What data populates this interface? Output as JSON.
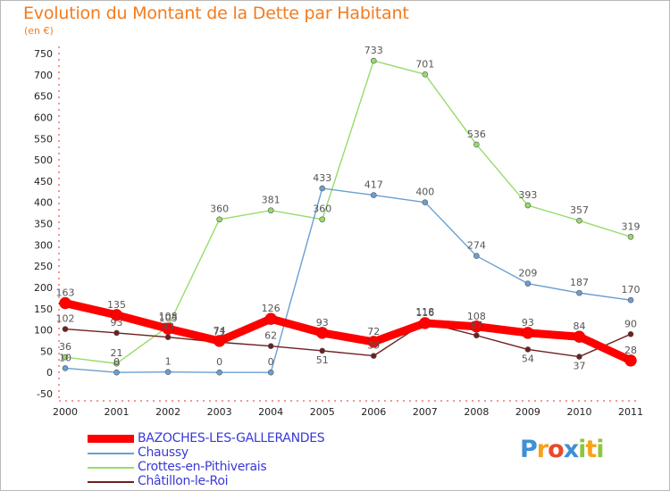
{
  "title": "Evolution du Montant de la Dette par Habitant",
  "unit_label": "(en €)",
  "chart_data": {
    "type": "line",
    "x": [
      "2000",
      "2001",
      "2002",
      "2003",
      "2004",
      "2005",
      "2006",
      "2007",
      "2008",
      "2009",
      "2010",
      "2011"
    ],
    "ylim": [
      -50,
      750
    ],
    "yticks": [
      -50,
      0,
      50,
      100,
      150,
      200,
      250,
      300,
      350,
      400,
      450,
      500,
      550,
      600,
      650,
      700,
      750
    ],
    "grid": false,
    "legend_position": "bottom-left",
    "series": [
      {
        "name": "BAZOCHES-LES-GALLERANDES",
        "color": "#ff0000",
        "values": [
          163,
          135,
          103,
          74,
          126,
          93,
          72,
          116,
          108,
          93,
          84,
          28
        ]
      },
      {
        "name": "Chaussy",
        "color": "#6a9fd1",
        "values": [
          10,
          0,
          1,
          0,
          0,
          433,
          417,
          400,
          274,
          209,
          187,
          170
        ]
      },
      {
        "name": "Crottes-en-Pithiverais",
        "color": "#96dc6a",
        "values": [
          36,
          21,
          108,
          360,
          381,
          360,
          733,
          701,
          536,
          393,
          357,
          319
        ]
      },
      {
        "name": "Châtillon-le-Roi",
        "color": "#6e1f1f",
        "values": [
          102,
          93,
          83,
          71,
          62,
          51,
          39,
          118,
          87,
          54,
          37,
          90
        ]
      }
    ]
  },
  "logo": {
    "letters": [
      "P",
      "r",
      "o",
      "x",
      "i",
      "t",
      "i"
    ],
    "colors": [
      "#3f8fd6",
      "#f7a21b",
      "#e84a2a",
      "#3f8fd6",
      "#8cc63f",
      "#f7a21b",
      "#8cc63f"
    ]
  }
}
